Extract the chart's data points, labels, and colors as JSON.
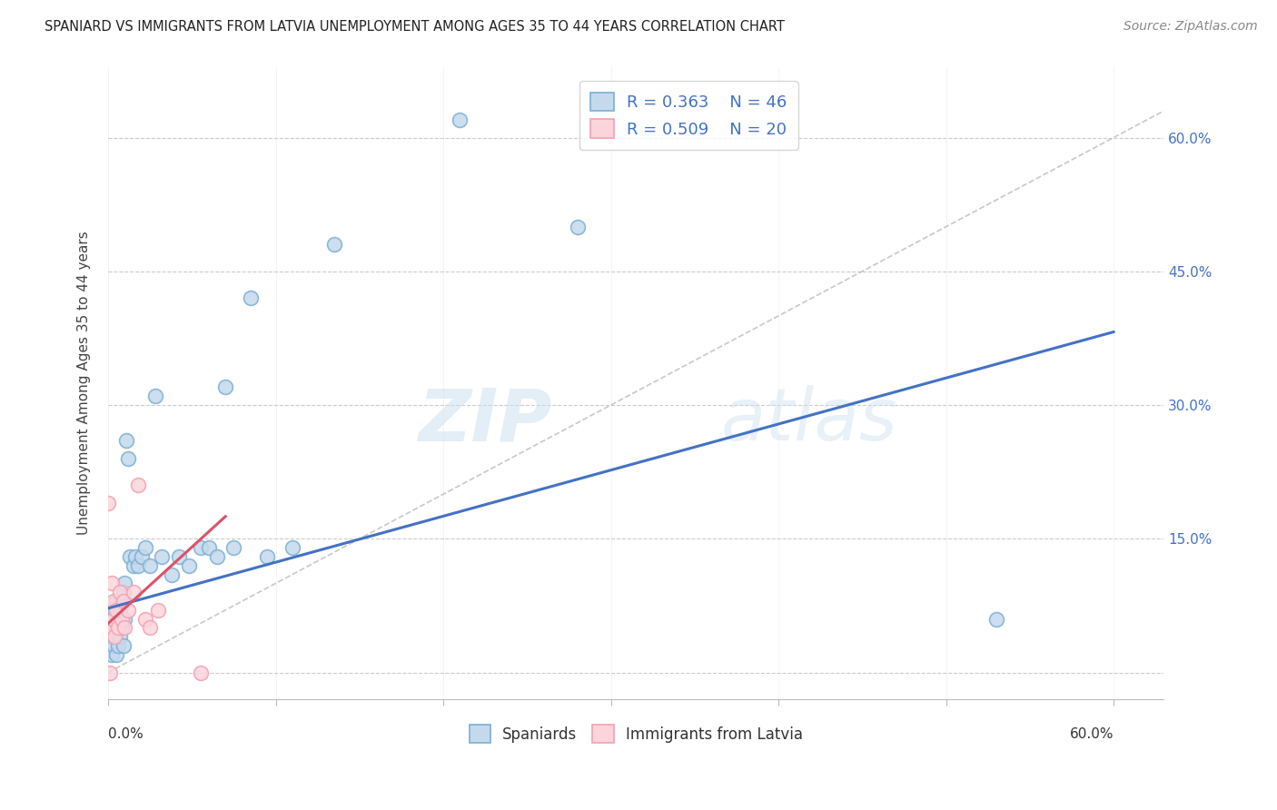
{
  "title": "SPANIARD VS IMMIGRANTS FROM LATVIA UNEMPLOYMENT AMONG AGES 35 TO 44 YEARS CORRELATION CHART",
  "source": "Source: ZipAtlas.com",
  "ylabel": "Unemployment Among Ages 35 to 44 years",
  "x_ticks": [
    0.0,
    0.1,
    0.2,
    0.3,
    0.4,
    0.5,
    0.6
  ],
  "x_tick_labels": [
    "0.0%",
    "",
    "",
    "",
    "",
    "",
    "60.0%"
  ],
  "y_ticks": [
    0.0,
    0.15,
    0.3,
    0.45,
    0.6
  ],
  "y_tick_labels_right": [
    "",
    "15.0%",
    "30.0%",
    "45.0%",
    "60.0%"
  ],
  "xlim": [
    0,
    0.63
  ],
  "ylim": [
    -0.03,
    0.68
  ],
  "legend_bottom_blue": "Spaniards",
  "legend_bottom_pink": "Immigrants from Latvia",
  "watermark_zip": "ZIP",
  "watermark_atlas": "atlas",
  "blue_marker_face": "#c5d9ed",
  "blue_marker_edge": "#7bafd4",
  "pink_marker_face": "#fcd5dc",
  "pink_marker_edge": "#f4a0b0",
  "line_blue": "#4472c4",
  "line_pink": "#d9536a",
  "diag_color": "#bbbbbb",
  "blue_line_x0": 0.0,
  "blue_line_y0": 0.072,
  "blue_line_x1": 0.6,
  "blue_line_y1": 0.382,
  "pink_line_x0": 0.0,
  "pink_line_y0": 0.055,
  "pink_line_x1": 0.07,
  "pink_line_y1": 0.175,
  "spaniard_x": [
    0.001,
    0.002,
    0.002,
    0.003,
    0.003,
    0.004,
    0.004,
    0.005,
    0.005,
    0.005,
    0.006,
    0.006,
    0.007,
    0.007,
    0.008,
    0.008,
    0.009,
    0.009,
    0.01,
    0.01,
    0.011,
    0.012,
    0.013,
    0.015,
    0.016,
    0.018,
    0.02,
    0.022,
    0.025,
    0.028,
    0.032,
    0.038,
    0.042,
    0.048,
    0.055,
    0.06,
    0.065,
    0.07,
    0.075,
    0.085,
    0.095,
    0.11,
    0.135,
    0.21,
    0.28,
    0.53
  ],
  "spaniard_y": [
    0.04,
    0.02,
    0.05,
    0.03,
    0.06,
    0.04,
    0.07,
    0.02,
    0.05,
    0.08,
    0.03,
    0.06,
    0.04,
    0.07,
    0.05,
    0.08,
    0.03,
    0.09,
    0.06,
    0.1,
    0.26,
    0.24,
    0.13,
    0.12,
    0.13,
    0.12,
    0.13,
    0.14,
    0.12,
    0.31,
    0.13,
    0.11,
    0.13,
    0.12,
    0.14,
    0.14,
    0.13,
    0.32,
    0.14,
    0.42,
    0.13,
    0.14,
    0.48,
    0.62,
    0.5,
    0.06
  ],
  "latvia_x": [
    0.0,
    0.001,
    0.002,
    0.002,
    0.003,
    0.003,
    0.004,
    0.005,
    0.006,
    0.007,
    0.008,
    0.009,
    0.01,
    0.012,
    0.015,
    0.018,
    0.022,
    0.025,
    0.03,
    0.055
  ],
  "latvia_y": [
    0.19,
    0.0,
    0.1,
    0.05,
    0.08,
    0.06,
    0.04,
    0.07,
    0.05,
    0.09,
    0.06,
    0.08,
    0.05,
    0.07,
    0.09,
    0.21,
    0.06,
    0.05,
    0.07,
    0.0
  ]
}
